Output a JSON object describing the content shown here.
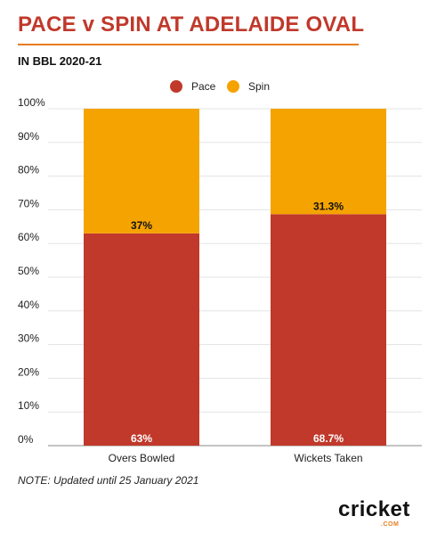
{
  "title": "PACE v SPIN AT ADELAIDE OVAL",
  "subtitle": "IN BBL 2020-21",
  "note": "NOTE: Updated until 25 January 2021",
  "logo": {
    "word": "cricket",
    "sub": ".COM"
  },
  "colors": {
    "pace": "#c0392b",
    "spin": "#f5a300",
    "title": "#c0392b",
    "accent": "#e67e22"
  },
  "chart_data": {
    "type": "bar",
    "stacked": true,
    "categories": [
      "Overs Bowled",
      "Wickets Taken"
    ],
    "series": [
      {
        "name": "Pace",
        "values": [
          63,
          68.7
        ],
        "labels": [
          "63%",
          "68.7%"
        ]
      },
      {
        "name": "Spin",
        "values": [
          37,
          31.3
        ],
        "labels": [
          "37%",
          "31.3%"
        ]
      }
    ],
    "yticks": [
      "0%",
      "10%",
      "20%",
      "30%",
      "40%",
      "50%",
      "60%",
      "70%",
      "80%",
      "90%",
      "100%"
    ],
    "ylim": [
      0,
      100
    ],
    "grid": true,
    "legend": "top-center"
  }
}
